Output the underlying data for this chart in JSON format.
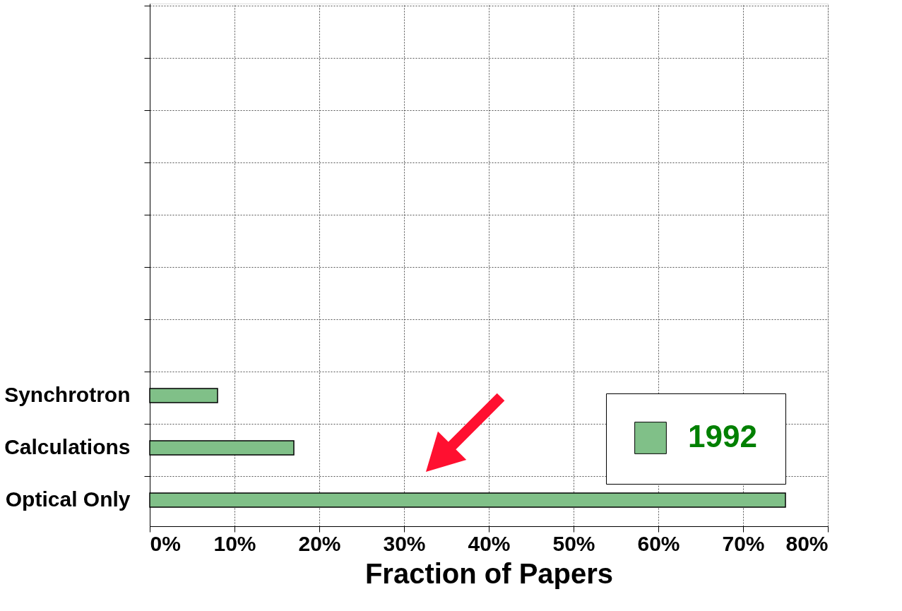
{
  "chart_data": {
    "type": "bar",
    "orientation": "horizontal",
    "categories": [
      null,
      null,
      null,
      null,
      null,
      null,
      null,
      "Synchrotron",
      "Calculations",
      "Optical Only"
    ],
    "series": [
      {
        "name": "1992",
        "color": "#80c088",
        "values": [
          null,
          null,
          null,
          null,
          null,
          null,
          null,
          8,
          17,
          75
        ]
      }
    ],
    "xlabel": "Fraction of Papers",
    "xlim": [
      0,
      80
    ],
    "xticks": [
      {
        "value": 0,
        "label": "0%"
      },
      {
        "value": 10,
        "label": "10%"
      },
      {
        "value": 20,
        "label": "20%"
      },
      {
        "value": 30,
        "label": "30%"
      },
      {
        "value": 40,
        "label": "40%"
      },
      {
        "value": 50,
        "label": "50%"
      },
      {
        "value": 60,
        "label": "60%"
      },
      {
        "value": 70,
        "label": "70%"
      },
      {
        "value": 80,
        "label": "80%"
      }
    ],
    "grid": true,
    "legend": "bottom right"
  }
}
